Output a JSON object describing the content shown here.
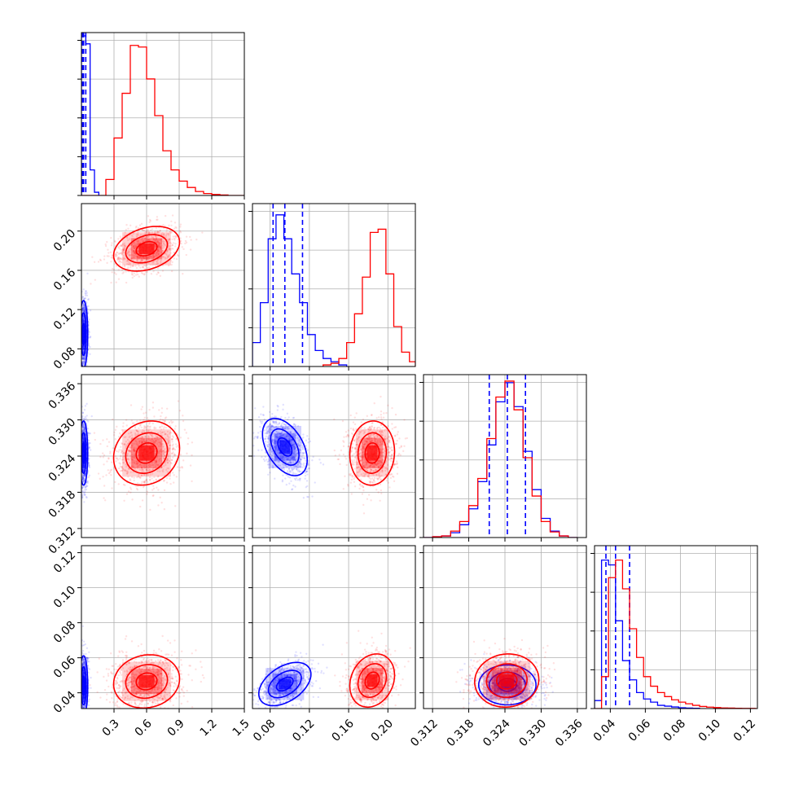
{
  "chart_data": {
    "type": "corner",
    "title": "",
    "grid": true,
    "parameters": [
      {
        "range": [
          0.0,
          1.5
        ],
        "ticks": [
          0.3,
          0.6,
          0.9,
          1.2,
          1.5
        ],
        "tick_labels": [
          "0.3",
          "0.6",
          "0.9",
          "1.2",
          "1.5"
        ]
      },
      {
        "range": [
          0.062,
          0.228
        ],
        "ticks": [
          0.08,
          0.12,
          0.16,
          0.2
        ],
        "tick_labels": [
          "0.08",
          "0.12",
          "0.16",
          "0.20"
        ]
      },
      {
        "range": [
          0.3105,
          0.3375
        ],
        "ticks": [
          0.312,
          0.318,
          0.324,
          0.33,
          0.336
        ],
        "tick_labels": [
          "0.312",
          "0.318",
          "0.324",
          "0.330",
          "0.336"
        ]
      },
      {
        "range": [
          0.031,
          0.124
        ],
        "ticks": [
          0.04,
          0.06,
          0.08,
          0.1,
          0.12
        ],
        "tick_labels": [
          "0.04",
          "0.06",
          "0.08",
          "0.10",
          "0.12"
        ]
      }
    ],
    "series": [
      {
        "color": "#0000ff",
        "quantiles": [
          [
            0.01,
            0.02,
            0.04
          ],
          [
            0.083,
            0.095,
            0.113
          ],
          [
            0.3214,
            0.3244,
            0.3274
          ],
          [
            0.0375,
            0.043,
            0.051
          ]
        ],
        "histograms": [
          {
            "edges": [
              0.0,
              0.04,
              0.08,
              0.12,
              0.16
            ],
            "counts": [
              1.0,
              0.95,
              0.16,
              0.02
            ]
          },
          {
            "edges": [
              0.062,
              0.07,
              0.078,
              0.086,
              0.094,
              0.102,
              0.11,
              0.118,
              0.126,
              0.134,
              0.142,
              0.15,
              0.158
            ],
            "counts": [
              0.15,
              0.4,
              0.8,
              0.95,
              0.8,
              0.58,
              0.4,
              0.2,
              0.1,
              0.05,
              0.03,
              0.01
            ]
          },
          {
            "edges": [
              0.3105,
              0.312,
              0.3135,
              0.315,
              0.3165,
              0.318,
              0.3195,
              0.321,
              0.3225,
              0.324,
              0.3255,
              0.327,
              0.3285,
              0.33,
              0.3315,
              0.333,
              0.3345,
              0.336
            ],
            "counts": [
              0.0,
              0.005,
              0.01,
              0.03,
              0.08,
              0.18,
              0.35,
              0.58,
              0.85,
              0.97,
              0.82,
              0.54,
              0.3,
              0.12,
              0.04,
              0.01,
              0.0
            ]
          },
          {
            "edges": [
              0.031,
              0.035,
              0.039,
              0.043,
              0.047,
              0.051,
              0.055,
              0.059,
              0.063,
              0.067,
              0.071,
              0.075,
              0.079,
              0.083,
              0.087,
              0.091
            ],
            "counts": [
              0.05,
              0.93,
              0.9,
              0.55,
              0.3,
              0.18,
              0.1,
              0.06,
              0.04,
              0.02,
              0.015,
              0.01,
              0.005,
              0.003,
              0.002
            ]
          }
        ],
        "pairs": [
          {
            "row": 1,
            "col": 0,
            "center": [
              0.02,
              0.095
            ],
            "sigma": [
              0.02,
              0.018
            ],
            "rho": 0.0
          },
          {
            "row": 2,
            "col": 0,
            "center": [
              0.02,
              0.3245
            ],
            "sigma": [
              0.02,
              0.0028
            ],
            "rho": 0.0
          },
          {
            "row": 2,
            "col": 1,
            "center": [
              0.095,
              0.3255
            ],
            "sigma": [
              0.012,
              0.0025
            ],
            "rho": -0.45
          },
          {
            "row": 3,
            "col": 0,
            "center": [
              0.02,
              0.044
            ],
            "sigma": [
              0.02,
              0.009
            ],
            "rho": 0.0
          },
          {
            "row": 3,
            "col": 1,
            "center": [
              0.095,
              0.045
            ],
            "sigma": [
              0.014,
              0.0065
            ],
            "rho": 0.45
          },
          {
            "row": 3,
            "col": 2,
            "center": [
              0.3244,
              0.0445
            ],
            "sigma": [
              0.0025,
              0.006
            ],
            "rho": 0.0
          }
        ]
      },
      {
        "color": "#ff0000",
        "quantiles": [],
        "histograms": [
          {
            "edges": [
              0.0,
              0.075,
              0.15,
              0.225,
              0.3,
              0.375,
              0.45,
              0.525,
              0.6,
              0.675,
              0.75,
              0.825,
              0.9,
              0.975,
              1.05,
              1.125,
              1.2,
              1.275,
              1.35,
              1.425,
              1.5
            ],
            "counts": [
              0.0,
              0.0,
              0.0,
              0.1,
              0.36,
              0.64,
              0.94,
              0.93,
              0.73,
              0.5,
              0.28,
              0.16,
              0.09,
              0.05,
              0.025,
              0.012,
              0.006,
              0.003,
              0.0,
              0.0
            ]
          },
          {
            "edges": [
              0.134,
              0.142,
              0.15,
              0.158,
              0.166,
              0.174,
              0.182,
              0.19,
              0.198,
              0.206,
              0.214,
              0.222,
              0.228
            ],
            "counts": [
              0.01,
              0.02,
              0.05,
              0.15,
              0.33,
              0.56,
              0.84,
              0.86,
              0.58,
              0.25,
              0.09,
              0.03
            ]
          },
          {
            "edges": [
              0.3105,
              0.312,
              0.3135,
              0.315,
              0.3165,
              0.318,
              0.3195,
              0.321,
              0.3225,
              0.324,
              0.3255,
              0.327,
              0.3285,
              0.33,
              0.3315,
              0.333,
              0.3345,
              0.336
            ],
            "counts": [
              0.0,
              0.005,
              0.01,
              0.04,
              0.1,
              0.2,
              0.37,
              0.62,
              0.88,
              0.98,
              0.8,
              0.5,
              0.26,
              0.1,
              0.035,
              0.01,
              0.0
            ]
          },
          {
            "edges": [
              0.031,
              0.035,
              0.039,
              0.043,
              0.047,
              0.051,
              0.055,
              0.059,
              0.063,
              0.067,
              0.071,
              0.075,
              0.079,
              0.083,
              0.087,
              0.091,
              0.095,
              0.099,
              0.103,
              0.107,
              0.111,
              0.115,
              0.119,
              0.123
            ],
            "counts": [
              0.0,
              0.2,
              0.82,
              0.93,
              0.75,
              0.5,
              0.32,
              0.2,
              0.14,
              0.1,
              0.075,
              0.055,
              0.04,
              0.03,
              0.02,
              0.013,
              0.009,
              0.006,
              0.004,
              0.003,
              0.002,
              0.001,
              0.001
            ]
          }
        ],
        "pairs": [
          {
            "row": 1,
            "col": 0,
            "center": [
              0.6,
              0.182
            ],
            "sigma": [
              0.16,
              0.012
            ],
            "rho": 0.3
          },
          {
            "row": 2,
            "col": 0,
            "center": [
              0.6,
              0.3245
            ],
            "sigma": [
              0.16,
              0.0028
            ],
            "rho": 0.15
          },
          {
            "row": 2,
            "col": 1,
            "center": [
              0.184,
              0.3245
            ],
            "sigma": [
              0.012,
              0.0028
            ],
            "rho": 0.05
          },
          {
            "row": 3,
            "col": 0,
            "center": [
              0.6,
              0.0465
            ],
            "sigma": [
              0.16,
              0.008
            ],
            "rho": 0.1
          },
          {
            "row": 3,
            "col": 1,
            "center": [
              0.184,
              0.047
            ],
            "sigma": [
              0.012,
              0.008
            ],
            "rho": 0.2
          },
          {
            "row": 3,
            "col": 2,
            "center": [
              0.3243,
              0.047
            ],
            "sigma": [
              0.0028,
              0.008
            ],
            "rho": 0.05
          }
        ]
      }
    ]
  }
}
